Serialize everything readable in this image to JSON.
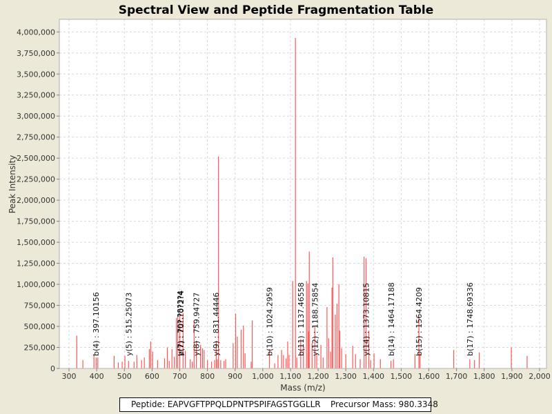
{
  "chart_data": {
    "type": "bar",
    "title": "Spectral View and Peptide Fragmentation Table",
    "xlabel": "Mass (m/z)",
    "ylabel": "Peak Intensity",
    "xlim": [
      265,
      2025
    ],
    "ylim": [
      0,
      4150000
    ],
    "x_ticks": [
      300,
      400,
      500,
      600,
      700,
      800,
      900,
      1000,
      1100,
      1200,
      1300,
      1400,
      1500,
      1600,
      1700,
      1800,
      1900,
      2000
    ],
    "x_tick_labels": [
      "300",
      "400",
      "500",
      "600",
      "700",
      "800",
      "900",
      "1,000",
      "1,100",
      "1,200",
      "1,300",
      "1,400",
      "1,500",
      "1,600",
      "1,700",
      "1,800",
      "1,900",
      "2,000"
    ],
    "y_ticks": [
      0,
      250000,
      500000,
      750000,
      1000000,
      1250000,
      1500000,
      1750000,
      2000000,
      2250000,
      2500000,
      2750000,
      3000000,
      3250000,
      3500000,
      3750000,
      4000000
    ],
    "y_tick_labels": [
      "0",
      "250,000",
      "500,000",
      "750,000",
      "1,000,000",
      "1,250,000",
      "1,500,000",
      "1,750,000",
      "2,000,000",
      "2,250,000",
      "2,500,000",
      "2,750,000",
      "3,000,000",
      "3,250,000",
      "3,500,000",
      "3,750,000",
      "4,000,000"
    ],
    "grid": true,
    "bar_color": "#ff5555",
    "peaks": [
      [
        328,
        390000
      ],
      [
        350,
        100000
      ],
      [
        390,
        170000
      ],
      [
        398,
        130000
      ],
      [
        404,
        130000
      ],
      [
        463,
        150000
      ],
      [
        478,
        70000
      ],
      [
        492,
        80000
      ],
      [
        502,
        150000
      ],
      [
        515,
        90000
      ],
      [
        535,
        80000
      ],
      [
        545,
        160000
      ],
      [
        562,
        100000
      ],
      [
        572,
        130000
      ],
      [
        590,
        230000
      ],
      [
        595,
        320000
      ],
      [
        602,
        200000
      ],
      [
        620,
        100000
      ],
      [
        645,
        120000
      ],
      [
        655,
        250000
      ],
      [
        662,
        90000
      ],
      [
        672,
        230000
      ],
      [
        680,
        140000
      ],
      [
        688,
        600000
      ],
      [
        693,
        620000
      ],
      [
        700,
        640000
      ],
      [
        712,
        660000
      ],
      [
        720,
        210000
      ],
      [
        738,
        110000
      ],
      [
        745,
        80000
      ],
      [
        752,
        560000
      ],
      [
        760,
        330000
      ],
      [
        775,
        280000
      ],
      [
        782,
        240000
      ],
      [
        788,
        220000
      ],
      [
        800,
        100000
      ],
      [
        815,
        80000
      ],
      [
        826,
        100000
      ],
      [
        832,
        330000
      ],
      [
        836,
        110000
      ],
      [
        840,
        2520000
      ],
      [
        848,
        100000
      ],
      [
        860,
        90000
      ],
      [
        866,
        110000
      ],
      [
        893,
        300000
      ],
      [
        902,
        650000
      ],
      [
        908,
        380000
      ],
      [
        922,
        460000
      ],
      [
        930,
        510000
      ],
      [
        936,
        180000
      ],
      [
        958,
        80000
      ],
      [
        962,
        570000
      ],
      [
        1024,
        230000
      ],
      [
        1043,
        60000
      ],
      [
        1055,
        160000
      ],
      [
        1068,
        220000
      ],
      [
        1075,
        160000
      ],
      [
        1084,
        120000
      ],
      [
        1090,
        320000
      ],
      [
        1095,
        160000
      ],
      [
        1108,
        1040000
      ],
      [
        1118,
        3930000
      ],
      [
        1123,
        130000
      ],
      [
        1137,
        350000
      ],
      [
        1147,
        260000
      ],
      [
        1158,
        1040000
      ],
      [
        1163,
        1010000
      ],
      [
        1166,
        440000
      ],
      [
        1168,
        1390000
      ],
      [
        1178,
        300000
      ],
      [
        1188,
        500000
      ],
      [
        1195,
        160000
      ],
      [
        1210,
        280000
      ],
      [
        1218,
        130000
      ],
      [
        1232,
        730000
      ],
      [
        1238,
        360000
      ],
      [
        1245,
        200000
      ],
      [
        1250,
        960000
      ],
      [
        1253,
        1320000
      ],
      [
        1262,
        640000
      ],
      [
        1268,
        770000
      ],
      [
        1275,
        1000000
      ],
      [
        1278,
        450000
      ],
      [
        1285,
        240000
      ],
      [
        1300,
        170000
      ],
      [
        1325,
        270000
      ],
      [
        1335,
        170000
      ],
      [
        1352,
        110000
      ],
      [
        1366,
        1330000
      ],
      [
        1373,
        1310000
      ],
      [
        1383,
        450000
      ],
      [
        1390,
        100000
      ],
      [
        1402,
        180000
      ],
      [
        1425,
        110000
      ],
      [
        1463,
        90000
      ],
      [
        1472,
        110000
      ],
      [
        1550,
        170000
      ],
      [
        1564,
        620000
      ],
      [
        1568,
        180000
      ],
      [
        1690,
        220000
      ],
      [
        1748,
        110000
      ],
      [
        1765,
        100000
      ],
      [
        1782,
        190000
      ],
      [
        1898,
        250000
      ],
      [
        1955,
        150000
      ]
    ],
    "annotations": [
      {
        "x": 397.10156,
        "label": "b(4) : 397.10156"
      },
      {
        "x": 515.25073,
        "label": "y(5) : 515.25073"
      },
      {
        "x": 701,
        "label": "y(7) : 70?.?8?3?4"
      },
      {
        "x": 704,
        "label": "b(7) : 70?.?0?2?4"
      },
      {
        "x": 759.94727,
        "label": "y(8) : 759.94727"
      },
      {
        "x": 831.44446,
        "label": "y(9) : 831.44446"
      },
      {
        "x": 1024.2959,
        "label": "b(10) : 1024.2959"
      },
      {
        "x": 1137.46558,
        "label": "b(11) : 1137.46558"
      },
      {
        "x": 1188.75854,
        "label": "y(12) : 1188.75854"
      },
      {
        "x": 1373.10815,
        "label": "y(14) : 1373.10815"
      },
      {
        "x": 1464.17188,
        "label": "b(14) : 1464.17188"
      },
      {
        "x": 1564.4209,
        "label": "b(15) : 1564.4209"
      },
      {
        "x": 1748.69336,
        "label": "b(17) : 1748.69336"
      }
    ]
  },
  "info": {
    "peptide": "Peptide: EAPVGFTPPQLDPNTPSPIFAGSTGGLLR",
    "precursor": "Precursor Mass: 980.3348"
  }
}
